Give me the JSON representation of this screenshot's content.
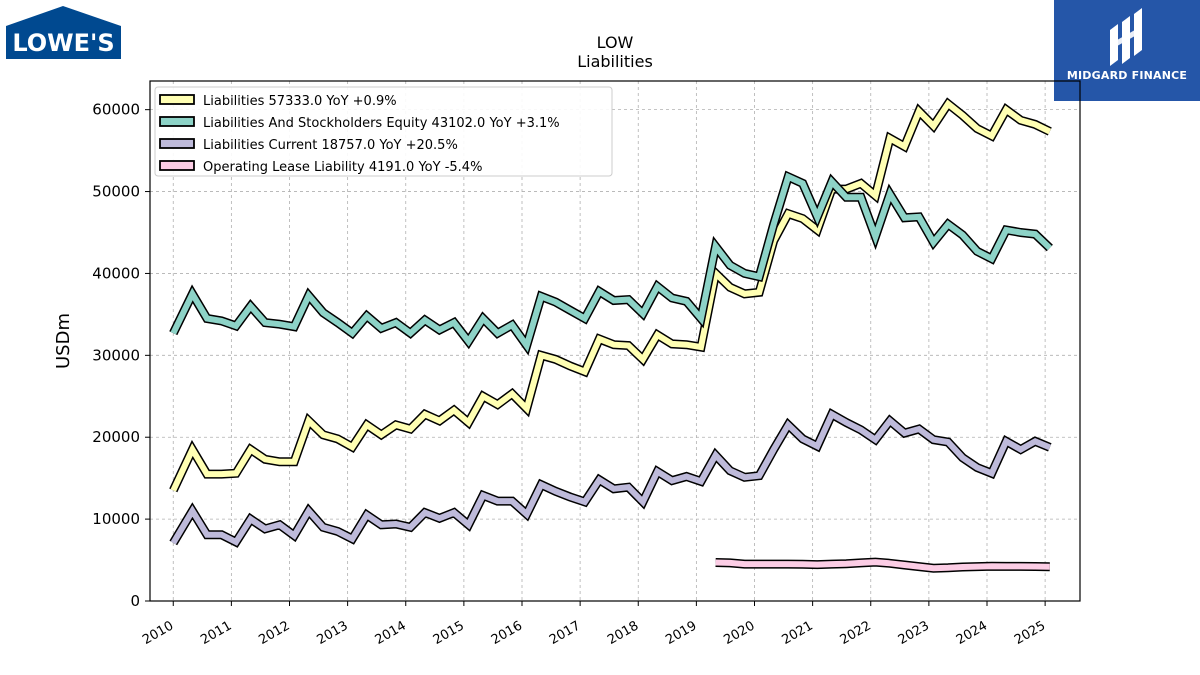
{
  "logos": {
    "left_text": "LOWE'S",
    "right_text": "MIDGARD FINANCE"
  },
  "chart_data": {
    "type": "line",
    "title": "LOW",
    "subtitle": "Liabilities",
    "xlabel": "",
    "ylabel": "USDm",
    "xlim": [
      2009.6,
      2025.6
    ],
    "ylim": [
      0,
      63500
    ],
    "x_ticks": [
      2010,
      2011,
      2012,
      2013,
      2014,
      2015,
      2016,
      2017,
      2018,
      2019,
      2020,
      2021,
      2022,
      2023,
      2024,
      2025
    ],
    "x_tick_labels": [
      "2010",
      "2011",
      "2012",
      "2013",
      "2014",
      "2015",
      "2016",
      "2017",
      "2018",
      "2019",
      "2020",
      "2021",
      "2022",
      "2023",
      "2024",
      "2025"
    ],
    "y_ticks": [
      0,
      10000,
      20000,
      30000,
      40000,
      50000,
      60000
    ],
    "y_tick_labels": [
      "0",
      "10000",
      "20000",
      "30000",
      "40000",
      "50000",
      "60000"
    ],
    "grid": true,
    "legend_position": "top-left",
    "series": [
      {
        "name": "Liabilities",
        "legend": "Liabilities  57333.0 YoY +0.9%",
        "color": "#ffffb3",
        "x": [
          2010.0,
          2010.33,
          2010.58,
          2010.83,
          2011.08,
          2011.33,
          2011.58,
          2011.83,
          2012.08,
          2012.33,
          2012.58,
          2012.83,
          2013.08,
          2013.33,
          2013.58,
          2013.83,
          2014.08,
          2014.33,
          2014.58,
          2014.83,
          2015.08,
          2015.33,
          2015.58,
          2015.83,
          2016.08,
          2016.33,
          2016.58,
          2016.83,
          2017.08,
          2017.33,
          2017.58,
          2017.83,
          2018.08,
          2018.33,
          2018.58,
          2018.83,
          2019.08,
          2019.33,
          2019.58,
          2019.83,
          2020.08,
          2020.33,
          2020.58,
          2020.83,
          2021.08,
          2021.33,
          2021.58,
          2021.83,
          2022.08,
          2022.33,
          2022.58,
          2022.83,
          2023.08,
          2023.33,
          2023.58,
          2023.83,
          2024.08,
          2024.33,
          2024.58,
          2024.83,
          2025.08
        ],
        "values": [
          13500,
          18500,
          15500,
          15500,
          15600,
          18500,
          17300,
          17000,
          17000,
          22000,
          20300,
          19800,
          18800,
          21500,
          20300,
          21500,
          21000,
          22800,
          22000,
          23300,
          21800,
          25000,
          24000,
          25300,
          23500,
          30000,
          29500,
          28700,
          28000,
          32000,
          31300,
          31200,
          29500,
          32500,
          31400,
          31300,
          31000,
          40000,
          38300,
          37500,
          37700,
          44000,
          47300,
          46700,
          45300,
          50300,
          50300,
          51000,
          49500,
          56500,
          55500,
          59800,
          58000,
          60700,
          59300,
          57700,
          56800,
          60000,
          58700,
          58200,
          57333
        ]
      },
      {
        "name": "Liabilities And Stockholders Equity",
        "legend": "Liabilities And Stockholders Equity  43102.0 YoY +3.1%",
        "color": "#8dd3c7",
        "x": [
          2010.0,
          2010.33,
          2010.58,
          2010.83,
          2011.08,
          2011.33,
          2011.58,
          2011.83,
          2012.08,
          2012.33,
          2012.58,
          2012.83,
          2013.08,
          2013.33,
          2013.58,
          2013.83,
          2014.08,
          2014.33,
          2014.58,
          2014.83,
          2015.08,
          2015.33,
          2015.58,
          2015.83,
          2016.08,
          2016.33,
          2016.58,
          2016.83,
          2017.08,
          2017.33,
          2017.58,
          2017.83,
          2018.08,
          2018.33,
          2018.58,
          2018.83,
          2019.08,
          2019.33,
          2019.58,
          2019.83,
          2020.08,
          2020.33,
          2020.58,
          2020.83,
          2021.08,
          2021.33,
          2021.58,
          2021.83,
          2022.08,
          2022.33,
          2022.58,
          2022.83,
          2023.08,
          2023.33,
          2023.58,
          2023.83,
          2024.08,
          2024.33,
          2024.58,
          2024.83,
          2025.08
        ],
        "values": [
          32700,
          37500,
          34500,
          34200,
          33600,
          36000,
          34000,
          33800,
          33500,
          37300,
          35200,
          34000,
          32700,
          34800,
          33300,
          34000,
          32700,
          34300,
          33100,
          34000,
          31700,
          34500,
          32700,
          33700,
          31200,
          37200,
          36500,
          35500,
          34500,
          37800,
          36700,
          36800,
          35100,
          38400,
          37000,
          36600,
          34500,
          43300,
          41000,
          40000,
          39600,
          46000,
          51800,
          51000,
          46900,
          51200,
          49300,
          49300,
          44500,
          49700,
          46800,
          46900,
          43800,
          46000,
          44700,
          42700,
          41800,
          45300,
          45000,
          44800,
          43102
        ]
      },
      {
        "name": "Liabilities Current",
        "legend": "Liabilities Current  18757.0 YoY +20.5%",
        "color": "#bebada",
        "x": [
          2010.0,
          2010.33,
          2010.58,
          2010.83,
          2011.08,
          2011.33,
          2011.58,
          2011.83,
          2012.08,
          2012.33,
          2012.58,
          2012.83,
          2013.08,
          2013.33,
          2013.58,
          2013.83,
          2014.08,
          2014.33,
          2014.58,
          2014.83,
          2015.08,
          2015.33,
          2015.58,
          2015.83,
          2016.08,
          2016.33,
          2016.58,
          2016.83,
          2017.08,
          2017.33,
          2017.58,
          2017.83,
          2018.08,
          2018.33,
          2018.58,
          2018.83,
          2019.08,
          2019.33,
          2019.58,
          2019.83,
          2020.08,
          2020.33,
          2020.58,
          2020.83,
          2021.08,
          2021.33,
          2021.58,
          2021.83,
          2022.08,
          2022.33,
          2022.58,
          2022.83,
          2023.08,
          2023.33,
          2023.58,
          2023.83,
          2024.08,
          2024.33,
          2024.58,
          2024.83,
          2025.08
        ],
        "values": [
          7100,
          11000,
          8100,
          8100,
          7200,
          10000,
          8800,
          9300,
          8000,
          11000,
          9000,
          8500,
          7600,
          10500,
          9300,
          9400,
          9000,
          10800,
          10100,
          10800,
          9300,
          12900,
          12200,
          12200,
          10600,
          14200,
          13400,
          12700,
          12100,
          14800,
          13700,
          13900,
          12100,
          15800,
          14700,
          15200,
          14600,
          17800,
          15900,
          15100,
          15300,
          18500,
          21500,
          19800,
          18900,
          22800,
          21800,
          20900,
          19700,
          22000,
          20500,
          21000,
          19700,
          19400,
          17500,
          16300,
          15600,
          19500,
          18500,
          19500,
          18757
        ]
      },
      {
        "name": "Operating Lease Liability",
        "legend": "Operating Lease Liability  4191.0 YoY -5.4%",
        "color": "#fccde5",
        "x": [
          2019.33,
          2019.58,
          2019.83,
          2020.08,
          2020.33,
          2020.58,
          2020.83,
          2021.08,
          2021.33,
          2021.58,
          2021.83,
          2022.08,
          2022.33,
          2022.58,
          2022.83,
          2023.08,
          2023.33,
          2023.58,
          2023.83,
          2024.08,
          2024.33,
          2024.58,
          2024.83,
          2025.08
        ],
        "values": [
          4700,
          4650,
          4500,
          4500,
          4500,
          4500,
          4480,
          4450,
          4500,
          4550,
          4650,
          4750,
          4600,
          4400,
          4200,
          4000,
          4050,
          4150,
          4200,
          4250,
          4230,
          4220,
          4210,
          4191
        ]
      }
    ]
  }
}
